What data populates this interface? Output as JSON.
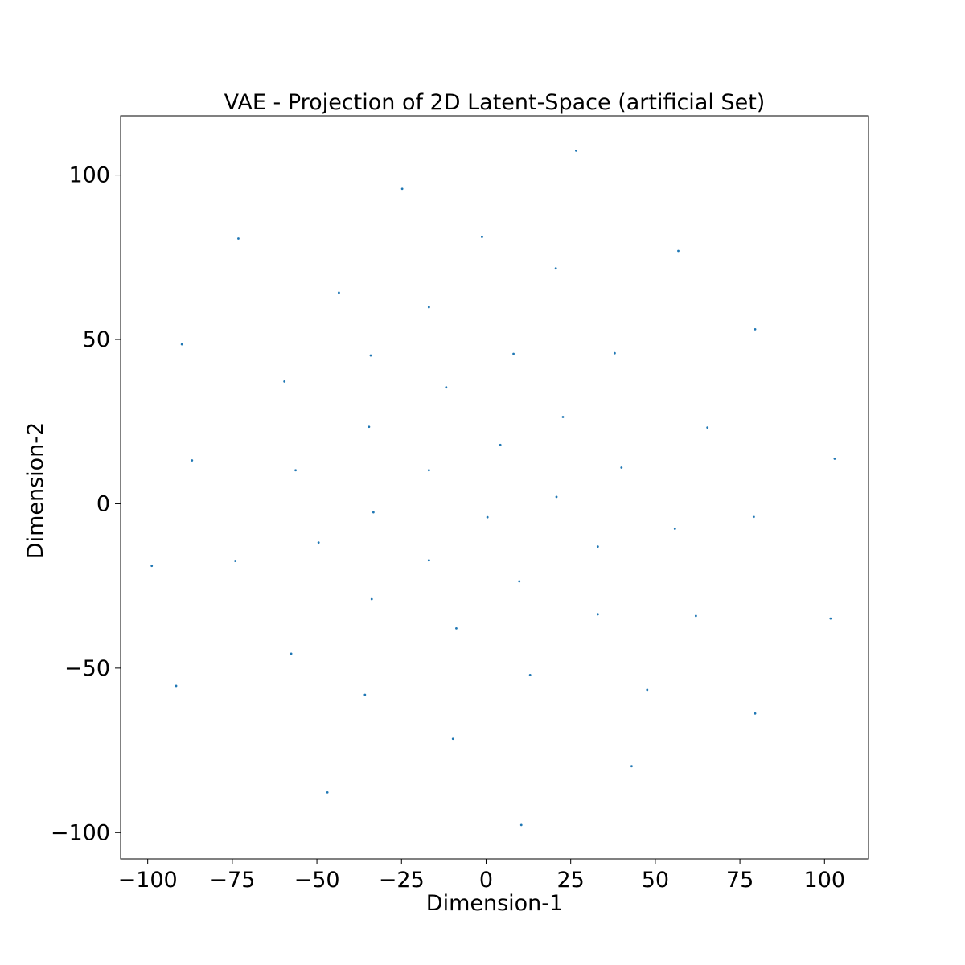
{
  "chart_data": {
    "type": "scatter",
    "title": "VAE - Projection of 2D Latent-Space (artificial Set)",
    "xlabel": "Dimension-1",
    "ylabel": "Dimension-2",
    "xlim": [
      -108,
      113
    ],
    "ylim": [
      -108,
      118
    ],
    "grid": false,
    "point_color": "#1f77b4",
    "xticks": [
      {
        "value": -100,
        "label": "−100"
      },
      {
        "value": -75,
        "label": "−75"
      },
      {
        "value": -50,
        "label": "−50"
      },
      {
        "value": -25,
        "label": "−25"
      },
      {
        "value": 0,
        "label": "0"
      },
      {
        "value": 25,
        "label": "25"
      },
      {
        "value": 50,
        "label": "50"
      },
      {
        "value": 75,
        "label": "75"
      },
      {
        "value": 100,
        "label": "100"
      }
    ],
    "yticks": [
      {
        "value": 100,
        "label": "100"
      },
      {
        "value": 50,
        "label": "50"
      },
      {
        "value": 0,
        "label": "0"
      },
      {
        "value": -50,
        "label": "−50"
      },
      {
        "value": -100,
        "label": "−100"
      }
    ],
    "points": [
      [
        26.6,
        107.4
      ],
      [
        -24.8,
        95.8
      ],
      [
        -73.2,
        80.7
      ],
      [
        -1.2,
        81.2
      ],
      [
        56.8,
        76.9
      ],
      [
        20.6,
        71.6
      ],
      [
        -43.5,
        64.2
      ],
      [
        -16.9,
        59.8
      ],
      [
        79.5,
        53.1
      ],
      [
        -89.9,
        48.5
      ],
      [
        -34.1,
        45.1
      ],
      [
        8.1,
        45.6
      ],
      [
        38.0,
        45.8
      ],
      [
        -59.6,
        37.2
      ],
      [
        -11.8,
        35.4
      ],
      [
        22.7,
        26.4
      ],
      [
        65.4,
        23.2
      ],
      [
        -34.6,
        23.4
      ],
      [
        4.2,
        17.9
      ],
      [
        -86.9,
        13.2
      ],
      [
        103.0,
        13.7
      ],
      [
        -56.3,
        10.2
      ],
      [
        -16.9,
        10.2
      ],
      [
        40.0,
        11.0
      ],
      [
        20.8,
        2.1
      ],
      [
        -33.3,
        -2.6
      ],
      [
        0.4,
        -4.1
      ],
      [
        79.1,
        -4.0
      ],
      [
        55.8,
        -7.6
      ],
      [
        -49.5,
        -11.8
      ],
      [
        33.0,
        -13.0
      ],
      [
        -98.8,
        -18.9
      ],
      [
        -74.1,
        -17.4
      ],
      [
        -16.9,
        -17.2
      ],
      [
        9.8,
        -23.6
      ],
      [
        -33.8,
        -29.0
      ],
      [
        33.0,
        -33.6
      ],
      [
        62.0,
        -34.1
      ],
      [
        101.8,
        -34.9
      ],
      [
        -8.8,
        -37.9
      ],
      [
        -57.6,
        -45.6
      ],
      [
        13.0,
        -52.1
      ],
      [
        -91.6,
        -55.4
      ],
      [
        47.6,
        -56.6
      ],
      [
        -35.8,
        -58.1
      ],
      [
        79.5,
        -63.8
      ],
      [
        -9.8,
        -71.5
      ],
      [
        43.0,
        -79.8
      ],
      [
        -46.9,
        -87.8
      ],
      [
        10.4,
        -97.7
      ]
    ]
  }
}
